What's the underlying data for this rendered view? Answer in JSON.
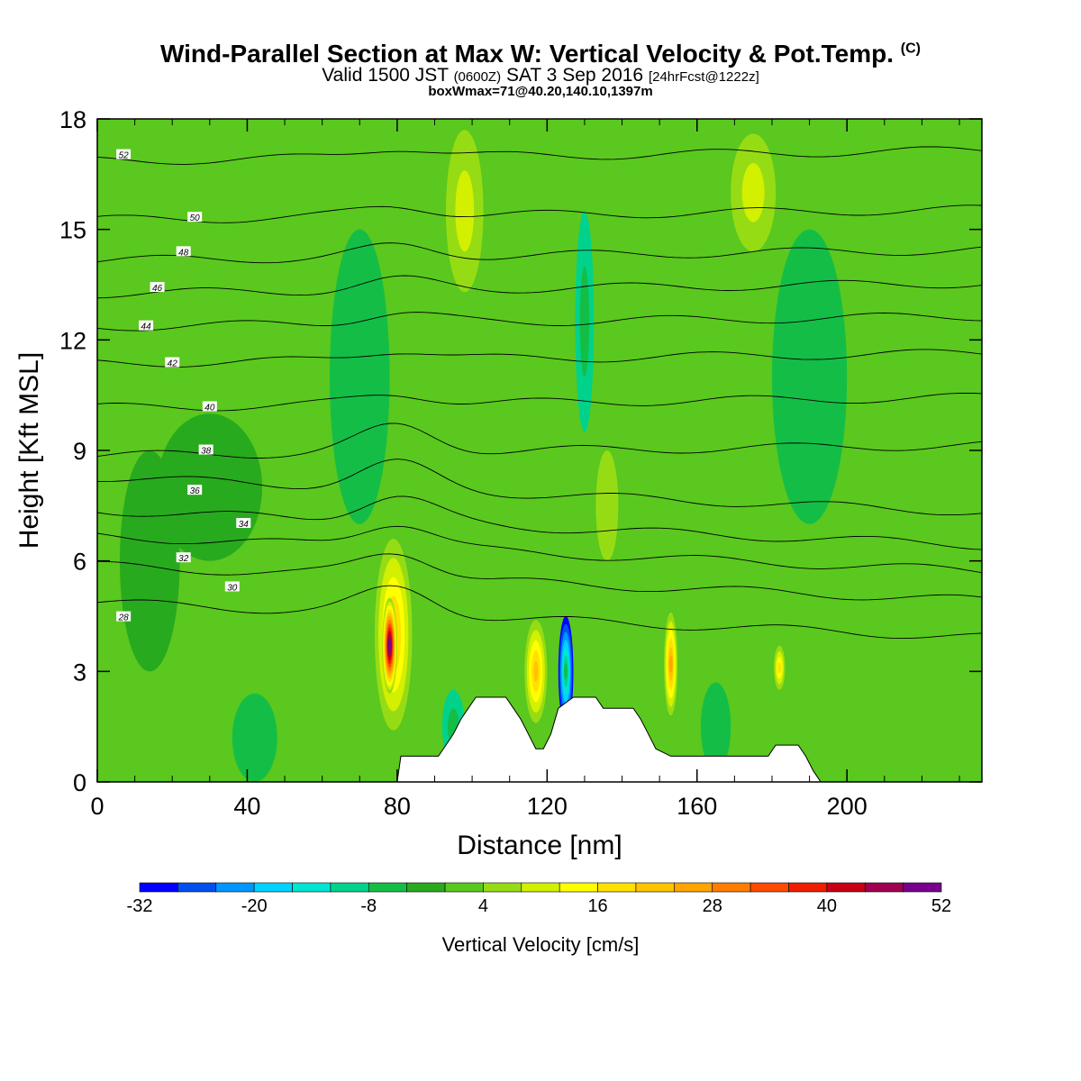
{
  "header": {
    "title": "Wind-Parallel Section at Max W: Vertical Velocity & Pot.Temp.",
    "title_mark": "(C)",
    "subtitle_a": "Valid 1500 JST",
    "subtitle_b": "(0600Z)",
    "subtitle_c": "SAT 3 Sep 2016",
    "subtitle_d": "[24hrFcst@1222z]",
    "subtitle2": "boxWmax=71@40.20,140.10,1397m"
  },
  "chart_data": {
    "type": "heatmap",
    "xlabel": "Distance [nm]",
    "ylabel": "Height [Kft MSL]",
    "xlim": [
      0,
      236
    ],
    "ylim": [
      0,
      18
    ],
    "x_ticks": [
      "0",
      "40",
      "80",
      "120",
      "160",
      "200"
    ],
    "y_ticks": [
      "0",
      "3",
      "6",
      "9",
      "12",
      "15",
      "18"
    ],
    "colorbar": {
      "label": "Vertical Velocity [cm/s]",
      "tick_labels": [
        "-32",
        "-20",
        "-8",
        "4",
        "16",
        "28",
        "40",
        "52"
      ],
      "levels": [
        -32,
        -28,
        -24,
        -20,
        -16,
        -12,
        -8,
        -4,
        0,
        4,
        8,
        12,
        16,
        20,
        24,
        28,
        32,
        36,
        40,
        44,
        48,
        52
      ],
      "colors": [
        "#0000ff",
        "#0050f0",
        "#0096ff",
        "#00d2ff",
        "#00e6d2",
        "#00d28c",
        "#14be46",
        "#28aa1e",
        "#5ac81e",
        "#96dc14",
        "#d2f000",
        "#ffff00",
        "#ffe100",
        "#ffc300",
        "#ffa500",
        "#ff7d00",
        "#ff4b00",
        "#f01e00",
        "#c80014",
        "#a00050",
        "#78008c"
      ]
    },
    "background_w": 0,
    "cells": [
      {
        "x": 79,
        "y": 4.0,
        "sx": 5,
        "sy": 2.6,
        "w": 20
      },
      {
        "x": 78,
        "y": 3.7,
        "sx": 2,
        "sy": 1.3,
        "w": 52
      },
      {
        "x": 117,
        "y": 3.0,
        "sx": 3,
        "sy": 1.4,
        "w": 22
      },
      {
        "x": 125,
        "y": 3.0,
        "sx": 2,
        "sy": 1.5,
        "w": -30
      },
      {
        "x": 153,
        "y": 3.2,
        "sx": 1.8,
        "sy": 1.4,
        "w": 24
      },
      {
        "x": 182,
        "y": 3.1,
        "sx": 1.5,
        "sy": 0.6,
        "w": 16
      },
      {
        "x": 98,
        "y": 15.5,
        "sx": 5,
        "sy": 2.2,
        "w": 10
      },
      {
        "x": 175,
        "y": 16.0,
        "sx": 6,
        "sy": 1.6,
        "w": 9
      },
      {
        "x": 130,
        "y": 12.5,
        "sx": 2.5,
        "sy": 3.0,
        "w": -10
      },
      {
        "x": 42,
        "y": 1.2,
        "sx": 6,
        "sy": 1.2,
        "w": -7
      },
      {
        "x": 165,
        "y": 1.5,
        "sx": 4,
        "sy": 1.2,
        "w": -7
      },
      {
        "x": 70,
        "y": 11.0,
        "sx": 8,
        "sy": 4.0,
        "w": -4
      },
      {
        "x": 190,
        "y": 11.0,
        "sx": 10,
        "sy": 4.0,
        "w": -4
      },
      {
        "x": 30,
        "y": 8.0,
        "sx": 14,
        "sy": 2.0,
        "w": -3
      },
      {
        "x": 95,
        "y": 1.5,
        "sx": 3,
        "sy": 1.0,
        "w": -8
      },
      {
        "x": 136,
        "y": 7.5,
        "sx": 3,
        "sy": 1.5,
        "w": 5
      },
      {
        "x": 14,
        "y": 6.0,
        "sx": 8,
        "sy": 3.0,
        "w": -3
      }
    ],
    "theta_contours": [
      {
        "label": "28",
        "y": 4.4,
        "label_x": 7
      },
      {
        "label": "30",
        "y": 5.4,
        "label_x": 36
      },
      {
        "label": "32",
        "y": 6.2,
        "label_x": 23
      },
      {
        "label": "34",
        "y": 6.9,
        "label_x": 39
      },
      {
        "label": "36",
        "y": 7.8,
        "label_x": 26
      },
      {
        "label": "38",
        "y": 9.0,
        "label_x": 29
      },
      {
        "label": "40",
        "y": 10.3,
        "label_x": 30
      },
      {
        "label": "42",
        "y": 11.5,
        "label_x": 20
      },
      {
        "label": "44",
        "y": 12.5,
        "label_x": 13
      },
      {
        "label": "46",
        "y": 13.4,
        "label_x": 16
      },
      {
        "label": "48",
        "y": 14.3,
        "label_x": 23
      },
      {
        "label": "50",
        "y": 15.4,
        "label_x": 26
      },
      {
        "label": "52",
        "y": 17.0,
        "label_x": 7
      }
    ],
    "terrain": [
      [
        0,
        0
      ],
      [
        80,
        0
      ],
      [
        81,
        0.7
      ],
      [
        91,
        0.7
      ],
      [
        93,
        1.0
      ],
      [
        95,
        1.3
      ],
      [
        97,
        1.7
      ],
      [
        99,
        2.0
      ],
      [
        101,
        2.3
      ],
      [
        109,
        2.3
      ],
      [
        111,
        2.0
      ],
      [
        113,
        1.7
      ],
      [
        115,
        1.3
      ],
      [
        117,
        0.9
      ],
      [
        119,
        0.9
      ],
      [
        121,
        1.3
      ],
      [
        123,
        2.0
      ],
      [
        127,
        2.3
      ],
      [
        133,
        2.3
      ],
      [
        135,
        2.0
      ],
      [
        143,
        2.0
      ],
      [
        145,
        1.7
      ],
      [
        147,
        1.3
      ],
      [
        149,
        0.9
      ],
      [
        153,
        0.7
      ],
      [
        179,
        0.7
      ],
      [
        181,
        1.0
      ],
      [
        187,
        1.0
      ],
      [
        189,
        0.7
      ],
      [
        191,
        0.3
      ],
      [
        193,
        0
      ],
      [
        236,
        0
      ]
    ]
  }
}
